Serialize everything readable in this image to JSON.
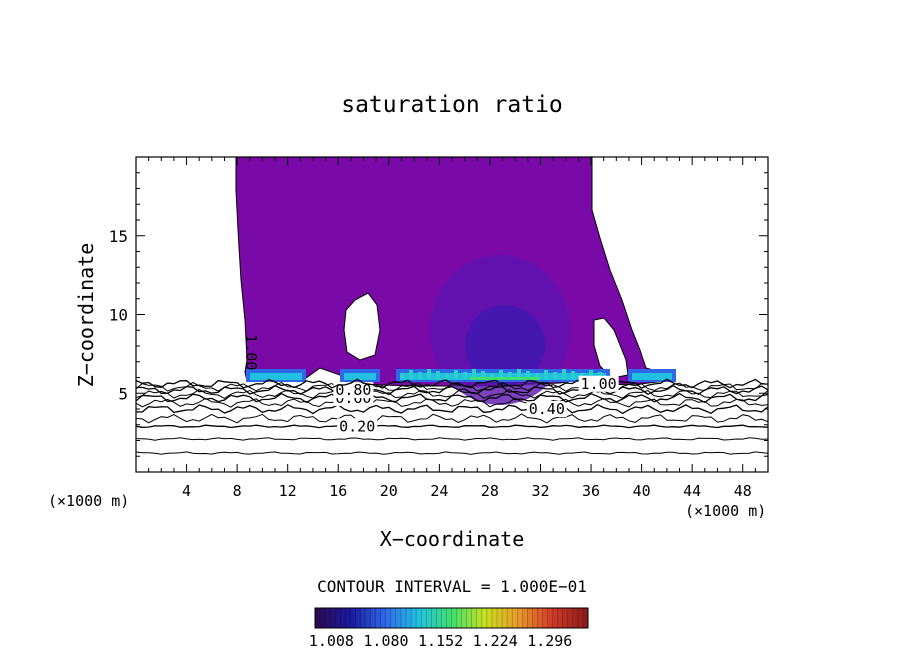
{
  "chart_data": {
    "type": "contour",
    "title": "saturation ratio",
    "xlabel": "X−coordinate",
    "ylabel": "Z−coordinate",
    "x_unit_left": "(×1000 m)",
    "x_unit_right": "(×1000 m)",
    "xlim": [
      0,
      50
    ],
    "ylim": [
      0,
      20
    ],
    "x_ticks": [
      4,
      8,
      12,
      16,
      20,
      24,
      28,
      32,
      36,
      40,
      44,
      48
    ],
    "y_ticks": [
      5,
      10,
      15
    ],
    "contour_interval_text": "CONTOUR INTERVAL = 1.000E−01",
    "contour_lines": [
      {
        "level": "0.20",
        "z": 2.9,
        "label_x": 17.5
      },
      {
        "level": "0.40",
        "z": 4.0,
        "label_x": 32.5
      },
      {
        "level": "0.60",
        "z": 4.7,
        "label_x": 17.2
      },
      {
        "level": "0.80",
        "z": 5.2,
        "label_x": 17.2
      },
      {
        "level": "1.00",
        "z": 5.6,
        "label_x": 36.6
      },
      {
        "level": "1.00",
        "z": 7.6,
        "label_x": 9.1
      }
    ],
    "extra_contours_z": [
      1.2,
      2.1,
      3.4,
      4.4,
      4.95,
      5.4
    ],
    "colorbar": {
      "ticks": [
        "1.008",
        "1.080",
        "1.152",
        "1.224",
        "1.296"
      ],
      "colors": [
        "#2b0a55",
        "#1a1a9e",
        "#2f67e6",
        "#22c0e0",
        "#3fe070",
        "#c7e020",
        "#e89a2a",
        "#d03a2a",
        "#8f1c1c"
      ]
    },
    "colors": {
      "cloud": "#7a0aa8",
      "core": "#5c13b0",
      "deep_core": "#3b1ab0"
    }
  }
}
